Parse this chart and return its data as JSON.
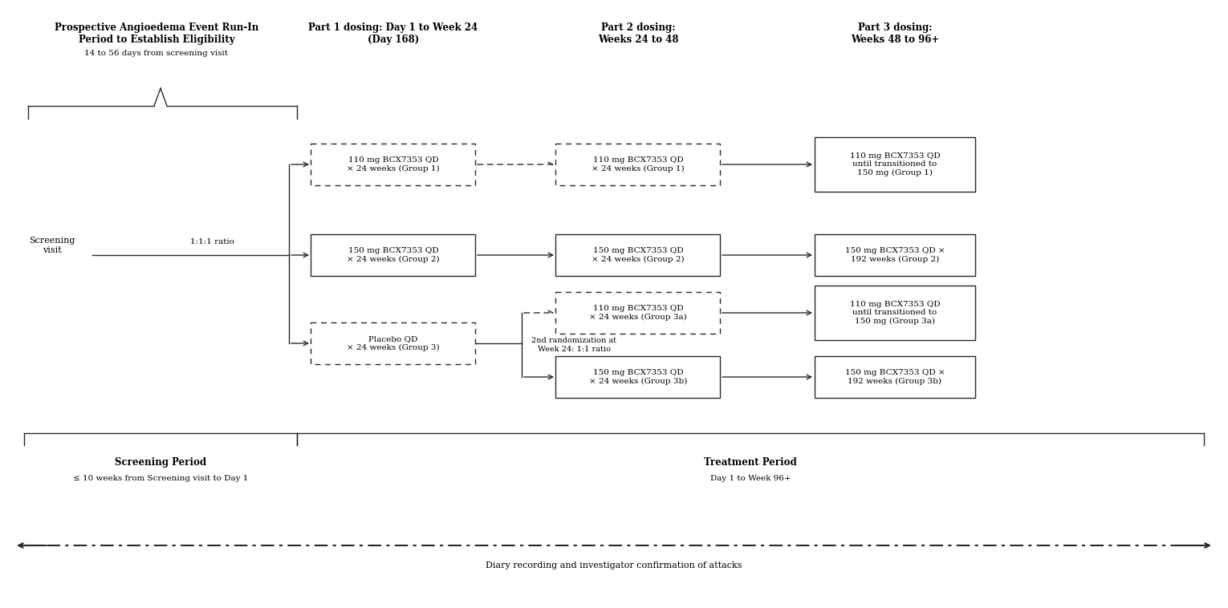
{
  "bg_color": "#ffffff",
  "fig_width": 15.3,
  "fig_height": 7.58,
  "header_part1": "Part 1 dosing: Day 1 to Week 24\n(Day 168)",
  "header_part2": "Part 2 dosing:\nWeeks 24 to 48",
  "header_part3": "Part 3 dosing:\nWeeks 48 to 96+",
  "run_in_title": "Prospective Angioedema Event Run-In\nPeriod to Establish Eligibility",
  "run_in_sub": "14 to 56 days from screening visit",
  "screening_label": "Screening\nvisit",
  "ratio_label": "1:1:1 ratio",
  "box_group1_p1": "110 mg BCX7353 QD\n× 24 weeks (Group 1)",
  "box_group2_p1": "150 mg BCX7353 QD\n× 24 weeks (Group 2)",
  "box_group3_p1": "Placebo QD\n× 24 weeks (Group 3)",
  "box_group1_p2": "110 mg BCX7353 QD\n× 24 weeks (Group 1)",
  "box_group2_p2": "150 mg BCX7353 QD\n× 24 weeks (Group 2)",
  "box_group3a_p2": "110 mg BCX7353 QD\n× 24 weeks (Group 3a)",
  "box_group3b_p2": "150 mg BCX7353 QD\n× 24 weeks (Group 3b)",
  "box_group1_p3": "110 mg BCX7353 QD\nuntil transitioned to\n150 mg (Group 1)",
  "box_group2_p3": "150 mg BCX7353 QD ×\n192 weeks (Group 2)",
  "box_group3a_p3": "110 mg BCX7353 QD\nuntil transitioned to\n150 mg (Group 3a)",
  "box_group3b_p3": "150 mg BCX7353 QD ×\n192 weeks (Group 3b)",
  "rand2_label": "2nd randomization at\nWeek 24: 1:1 ratio",
  "screening_period_label": "Screening Period",
  "screening_period_sub": "≤ 10 weeks from Screening visit to Day 1",
  "treatment_period_label": "Treatment Period",
  "treatment_period_sub": "Day 1 to Week 96+",
  "diary_label": "Diary recording and investigator confirmation of attacks"
}
